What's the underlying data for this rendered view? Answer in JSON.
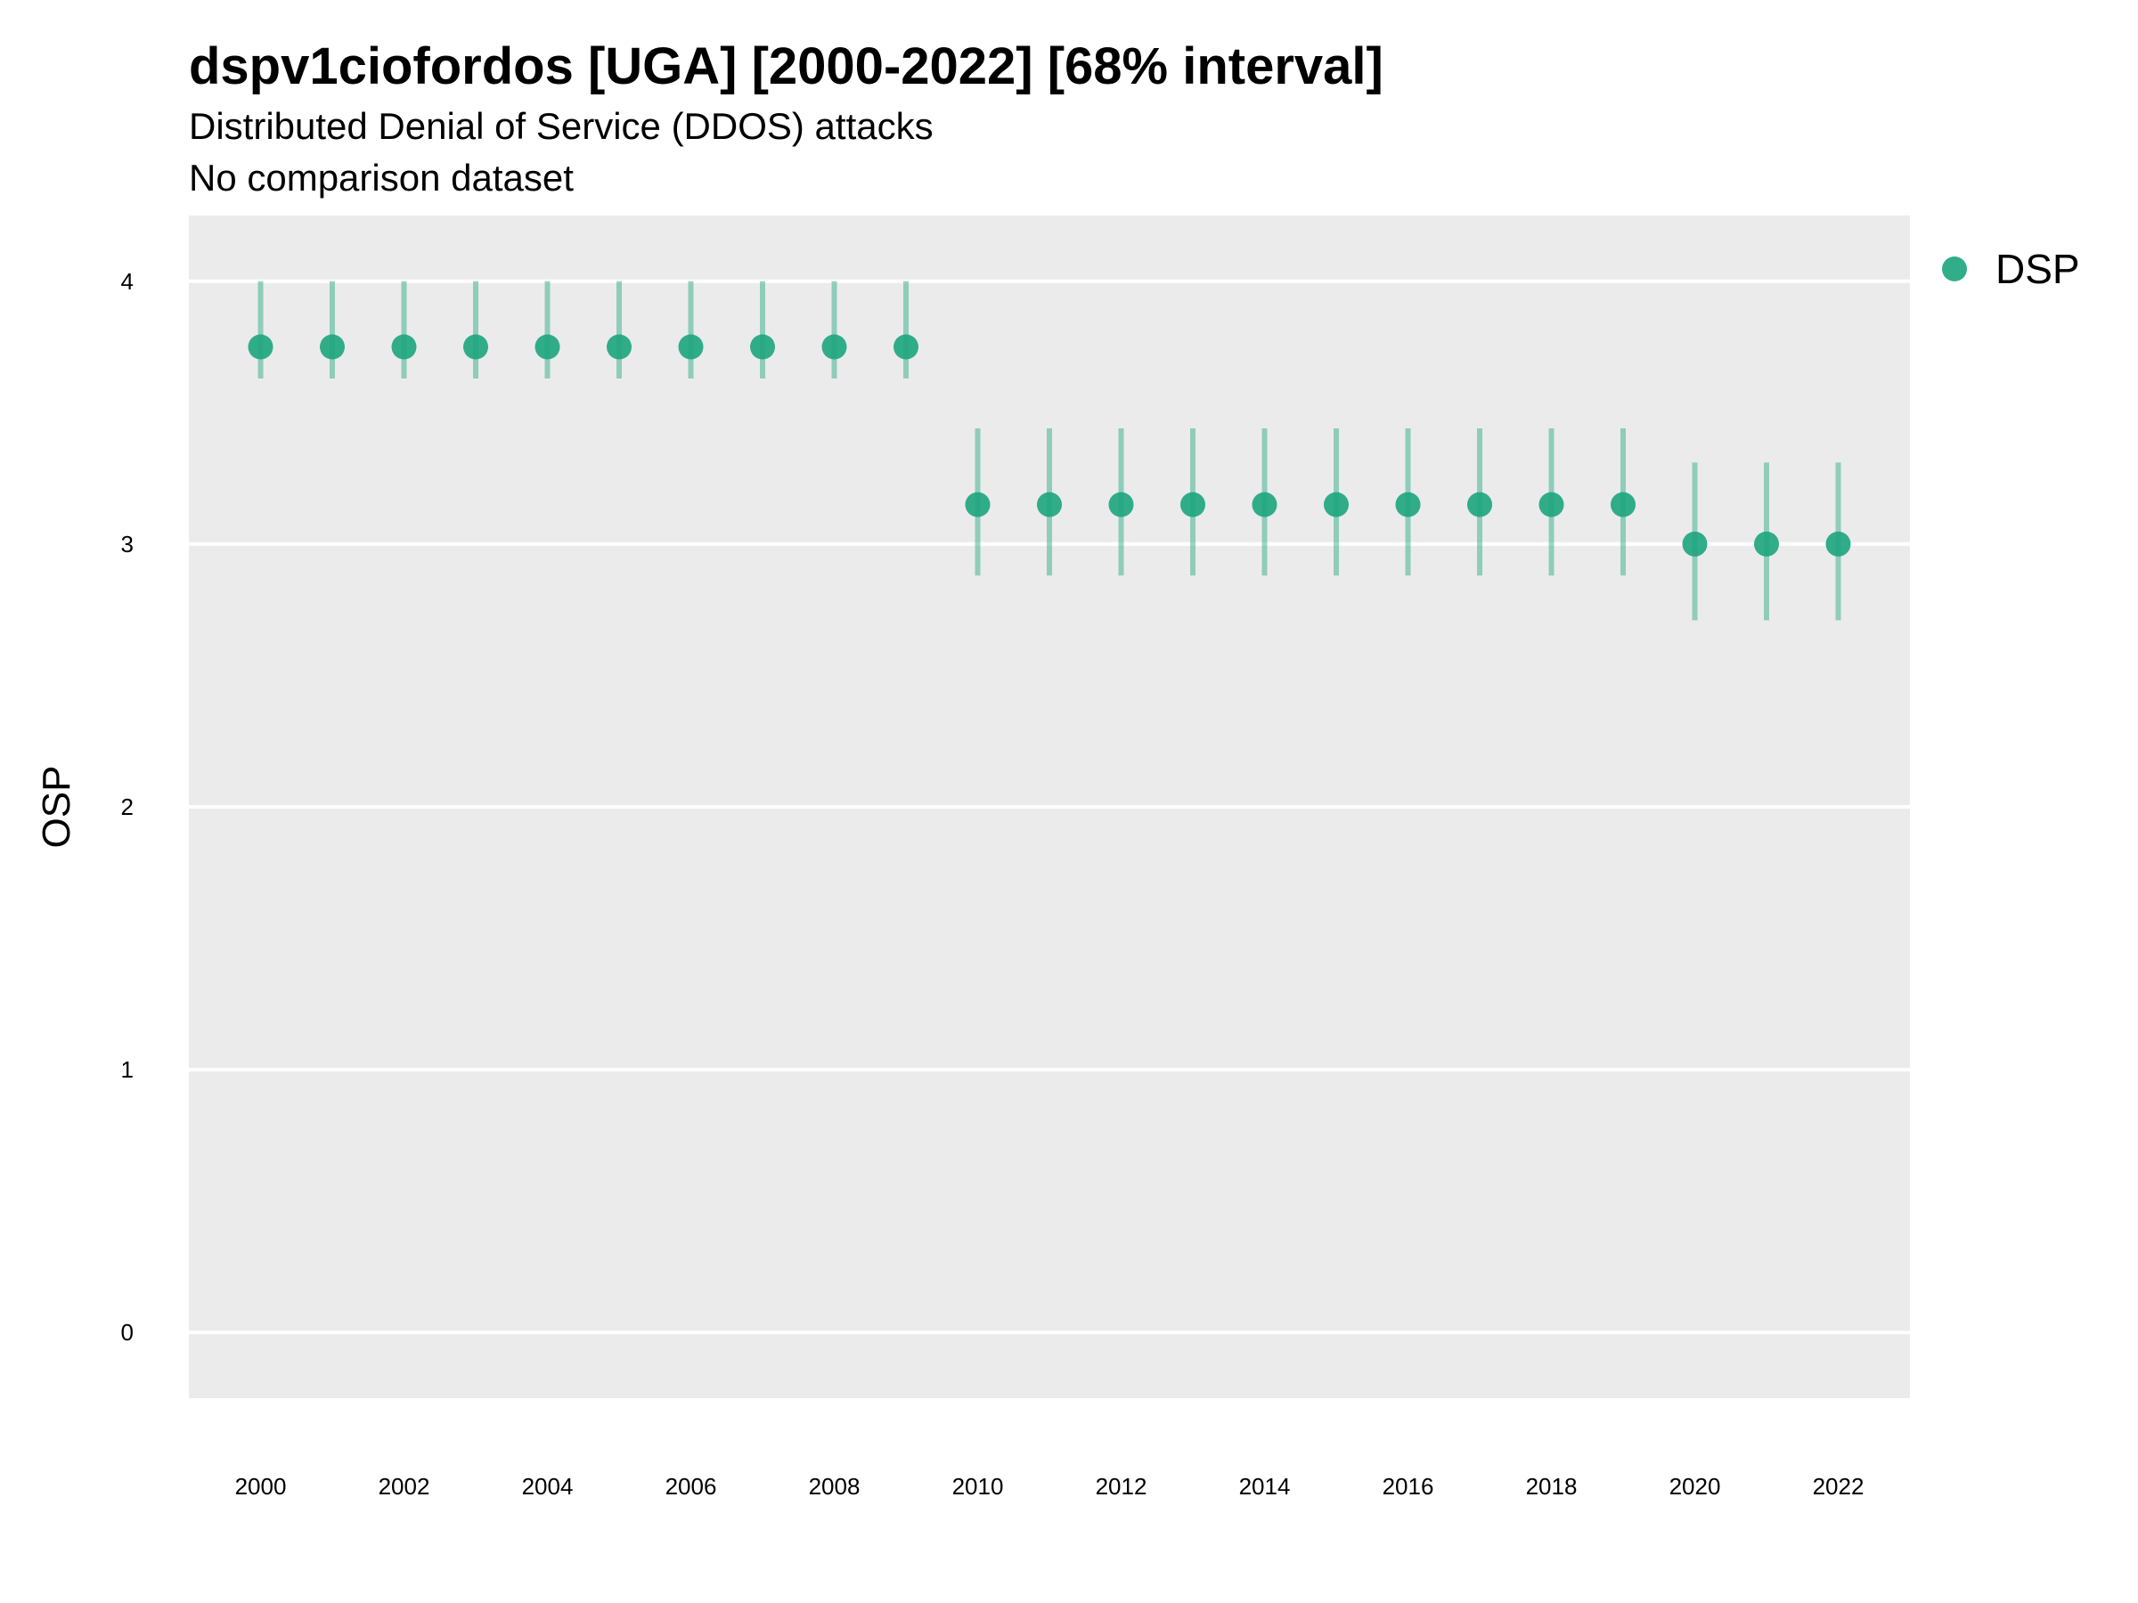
{
  "chart_data": {
    "type": "scatter",
    "title": "dspv1ciofordos [UGA] [2000-2022] [68% interval]",
    "subtitle": "Distributed Denial of Service (DDOS) attacks",
    "caption_line": "No comparison dataset",
    "xlabel": "",
    "ylabel": "OSP",
    "ylim": [
      -0.25,
      4.25
    ],
    "xlim": [
      1999,
      2023
    ],
    "y_ticks": [
      0,
      1,
      2,
      3,
      4
    ],
    "x_ticks": [
      2000,
      2002,
      2004,
      2006,
      2008,
      2010,
      2012,
      2014,
      2016,
      2018,
      2020,
      2022
    ],
    "grid": true,
    "legend_position": "right",
    "series": [
      {
        "name": "DSP",
        "color": "#1fa67f",
        "x": [
          2000,
          2001,
          2002,
          2003,
          2004,
          2005,
          2006,
          2007,
          2008,
          2009,
          2010,
          2011,
          2012,
          2013,
          2014,
          2015,
          2016,
          2017,
          2018,
          2019,
          2020,
          2021,
          2022
        ],
        "y": [
          3.75,
          3.75,
          3.75,
          3.75,
          3.75,
          3.75,
          3.75,
          3.75,
          3.75,
          3.75,
          3.15,
          3.15,
          3.15,
          3.15,
          3.15,
          3.15,
          3.15,
          3.15,
          3.15,
          3.15,
          3.0,
          3.0,
          3.0
        ],
        "lower": [
          3.63,
          3.63,
          3.63,
          3.63,
          3.63,
          3.63,
          3.63,
          3.63,
          3.63,
          3.63,
          2.88,
          2.88,
          2.88,
          2.88,
          2.88,
          2.88,
          2.88,
          2.88,
          2.88,
          2.88,
          2.71,
          2.71,
          2.71
        ],
        "upper": [
          4.0,
          4.0,
          4.0,
          4.0,
          4.0,
          4.0,
          4.0,
          4.0,
          4.0,
          4.0,
          3.44,
          3.44,
          3.44,
          3.44,
          3.44,
          3.44,
          3.44,
          3.44,
          3.44,
          3.44,
          3.31,
          3.31,
          3.31
        ]
      }
    ]
  },
  "colors": {
    "panel_background": "#ebebeb",
    "gridline": "#ffffff",
    "point": "#1fa67f"
  }
}
